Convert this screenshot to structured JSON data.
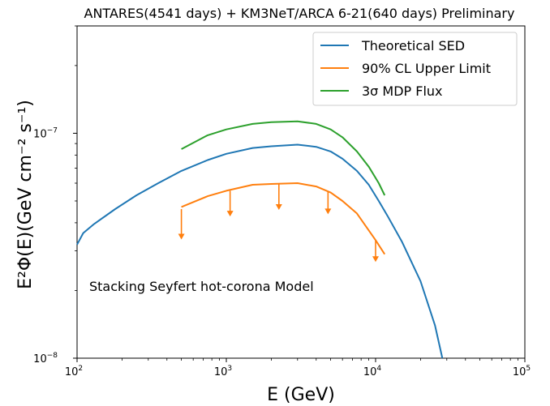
{
  "chart_data": {
    "type": "line",
    "title": "ANTARES(4541 days) + KM3NeT/ARCA 6-21(640 days) Preliminary",
    "xlabel": "E (GeV)",
    "ylabel": "E²Φ(E)(GeV cm⁻² s⁻¹)",
    "xscale": "log",
    "yscale": "log",
    "xlim": [
      100,
      100000
    ],
    "ylim": [
      1e-08,
      3e-07
    ],
    "grid": false,
    "legend_position": "top-right",
    "annotation": "Stacking Seyfert hot-corona Model",
    "x_ticks": [
      {
        "value": 100,
        "base": "10",
        "exp": "2"
      },
      {
        "value": 1000,
        "base": "10",
        "exp": "3"
      },
      {
        "value": 10000,
        "base": "10",
        "exp": "4"
      },
      {
        "value": 100000,
        "base": "10",
        "exp": "5"
      }
    ],
    "y_ticks": [
      {
        "value": 1e-08,
        "base": "10",
        "exp": "−8"
      },
      {
        "value": 1e-07,
        "base": "10",
        "exp": "−7"
      }
    ],
    "series": [
      {
        "name": "Theoretical SED",
        "color": "#1f77b4",
        "x": [
          100,
          110,
          130,
          180,
          250,
          350,
          500,
          750,
          1000,
          1500,
          2000,
          3000,
          4000,
          5000,
          6000,
          7500,
          9000,
          10500,
          12000,
          15000,
          20000,
          25000,
          28000
        ],
        "y": [
          3.2e-08,
          3.6e-08,
          3.95e-08,
          4.6e-08,
          5.3e-08,
          6e-08,
          6.8e-08,
          7.6e-08,
          8.1e-08,
          8.6e-08,
          8.75e-08,
          8.9e-08,
          8.7e-08,
          8.3e-08,
          7.7e-08,
          6.8e-08,
          5.9e-08,
          5e-08,
          4.3e-08,
          3.3e-08,
          2.2e-08,
          1.4e-08,
          1e-08
        ]
      },
      {
        "name": "90% CL Upper Limit",
        "color": "#ff7f0e",
        "x": [
          500,
          750,
          1000,
          1500,
          2000,
          3000,
          4000,
          5000,
          6000,
          7500,
          9000,
          10000,
          11500
        ],
        "y": [
          4.7e-08,
          5.25e-08,
          5.55e-08,
          5.9e-08,
          5.95e-08,
          6e-08,
          5.8e-08,
          5.45e-08,
          5e-08,
          4.4e-08,
          3.7e-08,
          3.35e-08,
          2.9e-08
        ],
        "upper_limit_arrows": [
          {
            "x": 500,
            "y_from": 4.6e-08,
            "y_to": 3.4e-08
          },
          {
            "x": 1060,
            "y_from": 5.55e-08,
            "y_to": 4.3e-08
          },
          {
            "x": 2250,
            "y_from": 5.95e-08,
            "y_to": 4.6e-08
          },
          {
            "x": 4800,
            "y_from": 5.5e-08,
            "y_to": 4.4e-08
          },
          {
            "x": 10000,
            "y_from": 3.35e-08,
            "y_to": 2.7e-08
          }
        ]
      },
      {
        "name": "3σ MDP Flux",
        "color": "#2ca02c",
        "x": [
          500,
          750,
          1000,
          1500,
          2000,
          3000,
          4000,
          5000,
          6000,
          7500,
          9000,
          10500,
          11500
        ],
        "y": [
          8.5e-08,
          9.8e-08,
          1.04e-07,
          1.1e-07,
          1.12e-07,
          1.13e-07,
          1.1e-07,
          1.04e-07,
          9.6e-08,
          8.3e-08,
          7.1e-08,
          6e-08,
          5.3e-08
        ]
      }
    ]
  }
}
